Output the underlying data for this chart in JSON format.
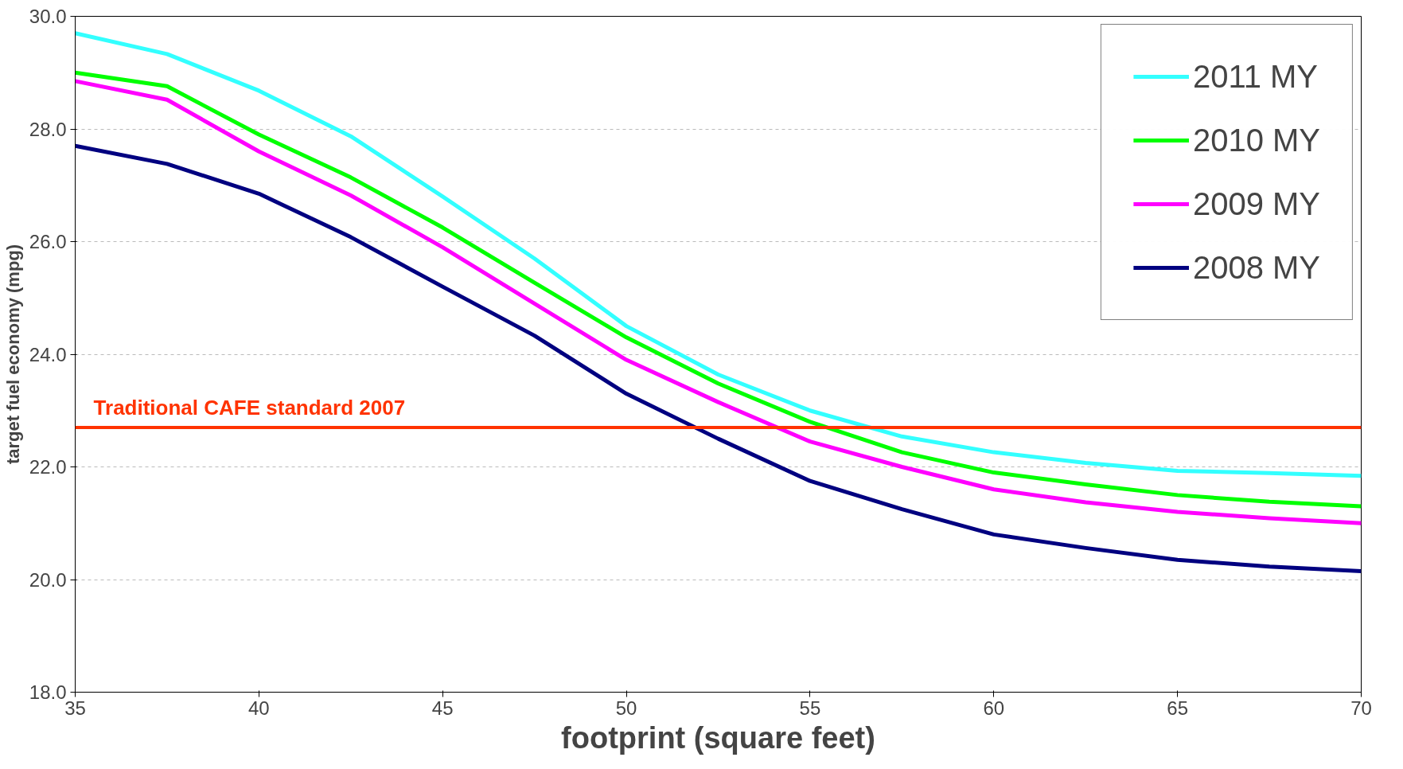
{
  "chart_data": {
    "type": "line",
    "xlabel": "footprint (square feet)",
    "ylabel": "target fuel economy (mpg)",
    "x": [
      35,
      37.5,
      40,
      42.5,
      45,
      47.5,
      50,
      52.5,
      55,
      57.5,
      60,
      62.5,
      65,
      67.5,
      70
    ],
    "series": [
      {
        "name": "2011 MY",
        "color": "#33ffff",
        "values": [
          29.7,
          29.33,
          28.68,
          27.87,
          26.8,
          25.7,
          24.5,
          23.64,
          23.0,
          22.54,
          22.26,
          22.07,
          21.93,
          21.89,
          21.84
        ]
      },
      {
        "name": "2010 MY",
        "color": "#00ff00",
        "values": [
          29.0,
          28.76,
          27.9,
          27.14,
          26.25,
          25.27,
          24.3,
          23.48,
          22.8,
          22.26,
          21.9,
          21.69,
          21.5,
          21.38,
          21.3
        ]
      },
      {
        "name": "2009 MY",
        "color": "#ff00ff",
        "values": [
          28.85,
          28.52,
          27.6,
          26.82,
          25.9,
          24.9,
          23.9,
          23.15,
          22.45,
          22.0,
          21.6,
          21.37,
          21.2,
          21.09,
          21.0
        ]
      },
      {
        "name": "2008 MY",
        "color": "#000080",
        "values": [
          27.7,
          27.38,
          26.85,
          26.08,
          25.2,
          24.33,
          23.3,
          22.5,
          21.75,
          21.25,
          20.8,
          20.56,
          20.35,
          20.23,
          20.15
        ]
      }
    ],
    "xlim": [
      35,
      70
    ],
    "xticks": [
      35,
      40,
      45,
      50,
      55,
      60,
      65,
      70
    ],
    "ylim": [
      18,
      30
    ],
    "yticks": [
      {
        "value": 18,
        "label": "18.0"
      },
      {
        "value": 20,
        "label": "20.0"
      },
      {
        "value": 22,
        "label": "22.0"
      },
      {
        "value": 24,
        "label": "24.0"
      },
      {
        "value": 26,
        "label": "26.0"
      },
      {
        "value": 28,
        "label": "28.0"
      },
      {
        "value": 30,
        "label": "30.0"
      }
    ],
    "ref_lines": [
      {
        "axis": "y",
        "value": 22.7,
        "label": "Traditional CAFE standard 2007",
        "color": "#ff3300"
      }
    ],
    "grid": "y",
    "legend": "top right",
    "marker": "none",
    "line_style": "solid"
  }
}
